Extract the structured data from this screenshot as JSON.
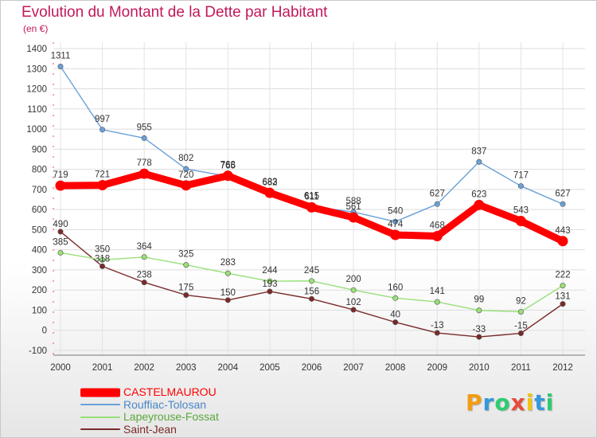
{
  "title": "Evolution du Montant de la Dette par Habitant",
  "unit": "(en €)",
  "logo": {
    "text": "Proxiti",
    "letters": [
      "P",
      "r",
      "o",
      "x",
      "i",
      "t",
      "i"
    ],
    "colors": [
      "#f39c12",
      "#3498db",
      "#2ecc71",
      "#e74c3c",
      "#f1c40f",
      "#3498db",
      "#2ecc71"
    ]
  },
  "chart_data": {
    "type": "line",
    "title": "Evolution du Montant de la Dette par Habitant",
    "ylabel": "(en €)",
    "xlabel": "",
    "x": [
      "2000",
      "2001",
      "2002",
      "2003",
      "2004",
      "2005",
      "2006",
      "2007",
      "2008",
      "2009",
      "2010",
      "2011",
      "2012"
    ],
    "ylim": [
      -100,
      1400
    ],
    "yticks": [
      -100,
      0,
      100,
      200,
      300,
      400,
      500,
      600,
      700,
      800,
      900,
      1000,
      1100,
      1200,
      1300,
      1400
    ],
    "grid": true,
    "legend": "bottom-left",
    "series": [
      {
        "name": "CASTELMAUROU",
        "color": "#ff0000",
        "values": [
          719,
          721,
          778,
          720,
          768,
          683,
          611,
          561,
          474,
          468,
          623,
          543,
          443
        ]
      },
      {
        "name": "Rouffiac-Tolosan",
        "color": "#6aa1d8",
        "values": [
          1311,
          997,
          955,
          802,
          765,
          682,
          615,
          588,
          540,
          627,
          837,
          717,
          627
        ]
      },
      {
        "name": "Lapeyrouse-Fossat",
        "color": "#98e078",
        "values": [
          385,
          350,
          364,
          325,
          283,
          244,
          245,
          200,
          160,
          141,
          99,
          92,
          222
        ]
      },
      {
        "name": "Saint-Jean",
        "color": "#7a2a2a",
        "values": [
          490,
          318,
          238,
          175,
          150,
          193,
          156,
          102,
          40,
          -13,
          -33,
          -15,
          131
        ]
      }
    ]
  }
}
